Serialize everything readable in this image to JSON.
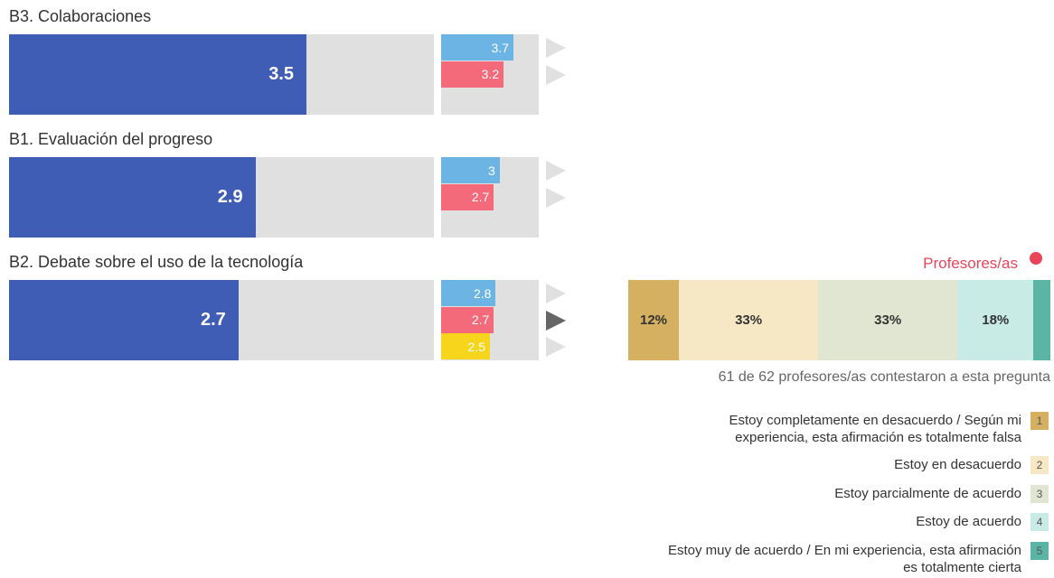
{
  "xlim": [
    0,
    5
  ],
  "sections": [
    {
      "title": "B3. Colaboraciones",
      "value": 3.5,
      "comparisons": [
        {
          "value": 3.7,
          "color": "#6cb4e4"
        },
        {
          "value": 3.2,
          "color": "#f46a7a"
        }
      ]
    },
    {
      "title": "B1. Evaluación del progreso",
      "value": 2.9,
      "comparisons": [
        {
          "value": 3,
          "color": "#6cb4e4"
        },
        {
          "value": 2.7,
          "color": "#f46a7a"
        }
      ]
    },
    {
      "title": "B2. Debate sobre el uso de la tecnología",
      "value": 2.7,
      "active": 1,
      "comparisons": [
        {
          "value": 2.8,
          "color": "#6cb4e4"
        },
        {
          "value": 2.7,
          "color": "#f46a7a"
        },
        {
          "value": 2.5,
          "color": "#f7d51d"
        }
      ]
    }
  ],
  "distribution": {
    "label": "Profesores/as",
    "values": [
      12,
      33,
      33,
      18,
      4
    ],
    "value_labels": [
      "12%",
      "33%",
      "33%",
      "18%",
      null
    ],
    "colors": [
      "#d4b060",
      "#f6e8c4",
      "#e1e6d2",
      "#c9ebe6",
      "#5bb5a5"
    ],
    "note": "61 de 62 profesores/as contestaron a esta pregunta"
  },
  "legend": [
    {
      "text": "Estoy completamente en desacuerdo / Según mi experiencia, esta afirmación es totalmente falsa",
      "key": "1"
    },
    {
      "text": "Estoy en desacuerdo",
      "key": "2"
    },
    {
      "text": "Estoy parcialmente de acuerdo",
      "key": "3"
    },
    {
      "text": "Estoy de acuerdo",
      "key": "4"
    },
    {
      "text": "Estoy muy de acuerdo / En mi experiencia, esta afirmación es totalmente cierta",
      "key": "5"
    }
  ]
}
